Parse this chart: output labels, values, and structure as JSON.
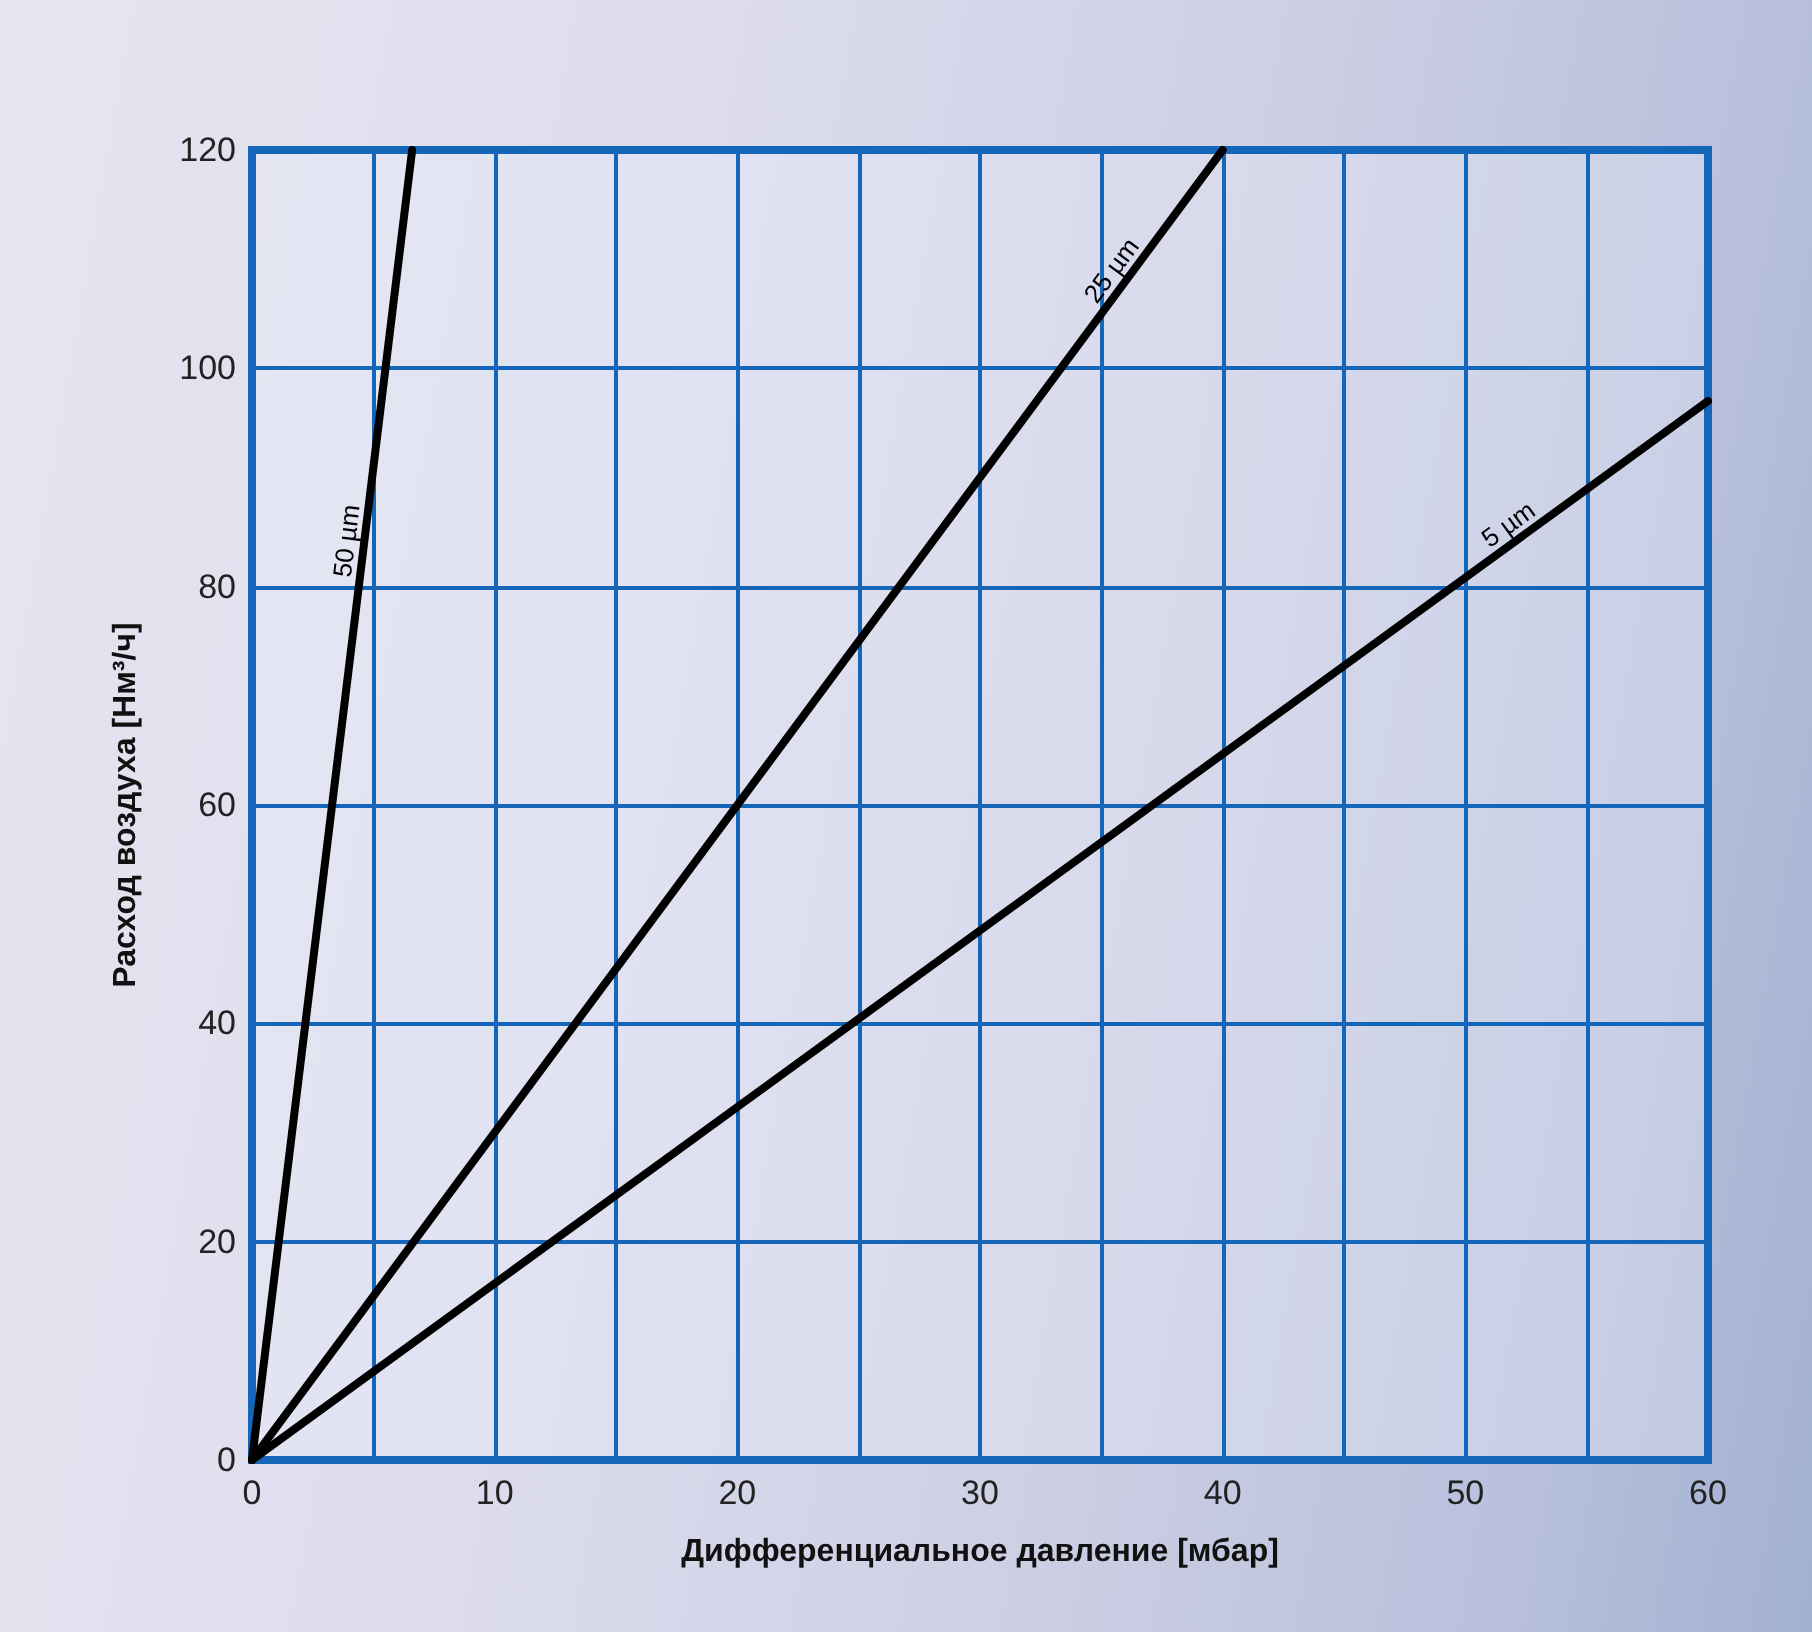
{
  "chart_data": {
    "type": "line",
    "xlabel": "Дифференциальное давление [мбар]",
    "ylabel": "Расход воздуха [Нм³/ч]",
    "xlim": [
      0,
      60
    ],
    "ylim": [
      0,
      120
    ],
    "xticks": [
      0,
      {
        "value": 5,
        "label": null
      },
      10,
      {
        "value": 15,
        "label": null
      },
      20,
      {
        "value": 25,
        "label": null
      },
      30,
      {
        "value": 35,
        "label": null
      },
      40,
      {
        "value": 45,
        "label": null
      },
      50,
      {
        "value": 55,
        "label": null
      },
      60
    ],
    "yticks": [
      0,
      20,
      40,
      60,
      80,
      100,
      120
    ],
    "grid": true,
    "legend": false,
    "marker": "none",
    "line_style": "solid",
    "series": [
      {
        "name": "50 µm",
        "color": "#000000",
        "x": [
          0,
          6.6
        ],
        "values": [
          0,
          120
        ]
      },
      {
        "name": "25 µm",
        "color": "#000000",
        "x": [
          0,
          40
        ],
        "values": [
          0,
          120
        ]
      },
      {
        "name": "5 µm",
        "color": "#000000",
        "x": [
          0,
          60
        ],
        "values": [
          0,
          97
        ]
      }
    ]
  }
}
